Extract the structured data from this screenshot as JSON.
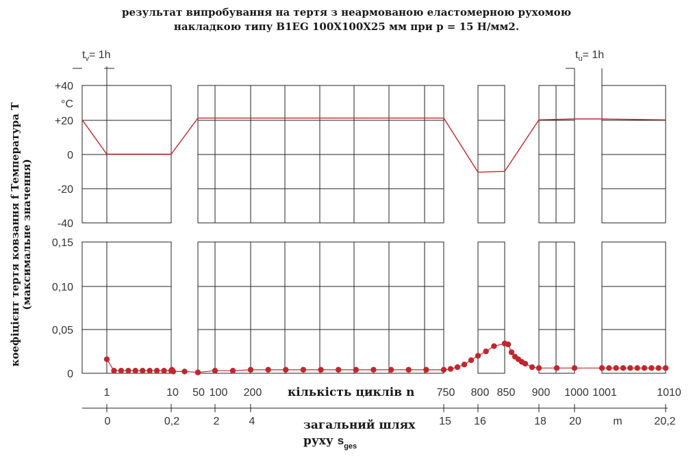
{
  "title_line1": "результат випробування на тертя з неармованою еластомерною рухомою",
  "title_line2": "накладкою типу B1EG 100X100X25 мм при p = 15 Н/мм2.",
  "ylabel_line1": "коефіцієнт тертя ковзання f Температура T",
  "ylabel_line2": "(максимальне значення)",
  "tv_label": {
    "t": "t",
    "sub": "v",
    "rest": "= 1h"
  },
  "tu_label": {
    "t": "t",
    "sub": "u",
    "rest": "= 1h"
  },
  "x_cycles_label": "кількість циклів n",
  "x_path_label_line1": "загальний шлях",
  "x_path_label_line2": {
    "text": "руху ",
    "s": "s",
    "sub": "ges"
  },
  "colors": {
    "series": "#c0272d",
    "grid": "#222222"
  },
  "chart_data": [
    {
      "type": "line",
      "title": "",
      "ylabel": "Температура T",
      "unit": "°C",
      "ylim": [
        -40,
        40
      ],
      "yticks": [
        "+40",
        "+20",
        "0",
        "-20",
        "-40"
      ],
      "yunit_label": "°C",
      "series": [
        {
          "x": [
            0,
            1,
            10,
            50,
            750,
            800,
            850,
            900,
            1000,
            1001,
            1010
          ],
          "y": [
            20,
            0,
            0,
            21,
            21,
            -10.5,
            -10,
            20,
            20.5,
            20.5,
            20
          ]
        }
      ]
    },
    {
      "type": "line",
      "title": "",
      "ylabel": "коефіцієнт тертя ковзання f (максимальне значення)",
      "ylim": [
        0,
        0.15
      ],
      "yticks": [
        "0,15",
        "0,10",
        "0,05",
        "0"
      ],
      "x_cycle_ticks": [
        "1",
        "10",
        "50",
        "100",
        "200",
        "750",
        "800",
        "850",
        "900",
        "1000",
        "1001",
        "1010"
      ],
      "x_path_ticks": [
        "0",
        "0,2",
        "2",
        "4",
        "15",
        "16",
        "18",
        "20",
        "m",
        "20,2"
      ],
      "series": [
        {
          "x": [
            1,
            2,
            3,
            4,
            5,
            6,
            7,
            8,
            9,
            10,
            11,
            12,
            13,
            30,
            50,
            100,
            150,
            200,
            250,
            300,
            350,
            400,
            450,
            500,
            550,
            600,
            650,
            700,
            750,
            760,
            770,
            780,
            790,
            800,
            815,
            830,
            850,
            855,
            860,
            865,
            870,
            875,
            880,
            890,
            900,
            950,
            1000,
            1001,
            1002,
            1003,
            1004,
            1005,
            1006,
            1007,
            1008,
            1009,
            1010
          ],
          "y": [
            0.016,
            0.003,
            0.003,
            0.003,
            0.003,
            0.003,
            0.003,
            0.003,
            0.003,
            0.003,
            0.004,
            0.003,
            0.002,
            0.002,
            0.001,
            0.003,
            0.003,
            0.004,
            0.004,
            0.004,
            0.004,
            0.004,
            0.004,
            0.004,
            0.004,
            0.004,
            0.004,
            0.004,
            0.004,
            0.005,
            0.007,
            0.01,
            0.015,
            0.02,
            0.025,
            0.031,
            0.034,
            0.033,
            0.024,
            0.019,
            0.016,
            0.013,
            0.011,
            0.007,
            0.006,
            0.006,
            0.006,
            0.006,
            0.006,
            0.006,
            0.006,
            0.006,
            0.006,
            0.006,
            0.006,
            0.006,
            0.006
          ]
        }
      ]
    }
  ]
}
